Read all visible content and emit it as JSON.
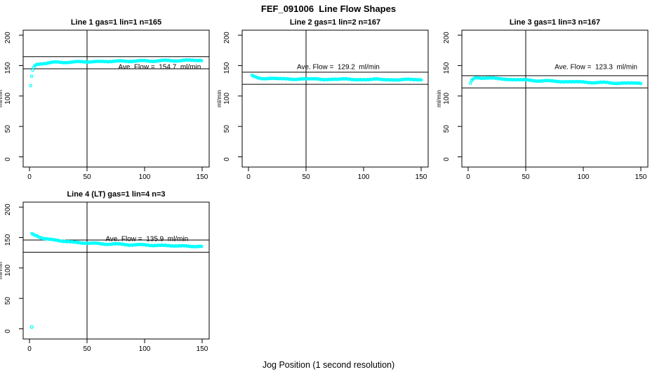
{
  "page": {
    "title": "FEF_091006  Line Flow Shapes",
    "xlabel": "Jog Position (1 second resolution)",
    "ylabel": "ml/min"
  },
  "colors": {
    "marker": "#00FFFF",
    "axis": "#000000",
    "background": "#FFFFFF",
    "text": "#000000"
  },
  "axes": {
    "x_ticks": [
      0,
      50,
      100,
      150
    ],
    "y_ticks": [
      0,
      50,
      100,
      150,
      200
    ],
    "x_range": [
      0,
      150
    ],
    "y_range": [
      0,
      200
    ],
    "vline_x": 50,
    "grid": false
  },
  "chart_data": [
    {
      "type": "scatter",
      "title": "Line 1 gas=1 lin=1 n=165",
      "line": 1,
      "gas": 1,
      "lin": 1,
      "n": 165,
      "ave_flow": 154.7,
      "annotation": "Ave. Flow =  154.7  ml/min",
      "hlines": [
        164.7,
        144.7
      ],
      "vline_x": 50,
      "keypoints": [
        [
          1,
          117
        ],
        [
          2,
          134
        ],
        [
          3,
          144.5
        ],
        [
          4,
          148.5
        ],
        [
          6,
          151.5
        ],
        [
          10,
          153.5
        ],
        [
          20,
          155
        ],
        [
          40,
          156
        ],
        [
          80,
          157.2
        ],
        [
          120,
          158
        ],
        [
          150,
          158.8
        ]
      ],
      "outliers": [],
      "x_start": 1,
      "x_step": 0.9,
      "x_end": 150,
      "ann_pos": {
        "x": 113,
        "y": 148
      },
      "grid_pos": {
        "row": 0,
        "col": 0
      }
    },
    {
      "type": "scatter",
      "title": "Line 2 gas=1 lin=2 n=167",
      "line": 2,
      "gas": 1,
      "lin": 2,
      "n": 167,
      "ave_flow": 129.2,
      "annotation": "Ave. Flow =  129.2  ml/min",
      "hlines": [
        139.2,
        119.2
      ],
      "vline_x": 50,
      "keypoints": [
        [
          3,
          134
        ],
        [
          5,
          132.3
        ],
        [
          8,
          130.3
        ],
        [
          12,
          129.2
        ],
        [
          20,
          128.4
        ],
        [
          40,
          128
        ],
        [
          70,
          127.6
        ],
        [
          100,
          127.2
        ],
        [
          150,
          126.7
        ]
      ],
      "outliers": [],
      "x_start": 3,
      "x_step": 0.886,
      "x_end": 150,
      "ann_pos": {
        "x": 78,
        "y": 148
      },
      "grid_pos": {
        "row": 0,
        "col": 1
      }
    },
    {
      "type": "scatter",
      "title": "Line 3 gas=1 lin=3 n=167",
      "line": 3,
      "gas": 1,
      "lin": 3,
      "n": 167,
      "ave_flow": 123.3,
      "annotation": "Ave. Flow =  123.3  ml/min",
      "hlines": [
        133.3,
        113.3
      ],
      "vline_x": 50,
      "keypoints": [
        [
          2,
          121
        ],
        [
          3,
          126
        ],
        [
          5,
          129
        ],
        [
          8,
          130.3
        ],
        [
          14,
          130
        ],
        [
          25,
          128.5
        ],
        [
          45,
          126.5
        ],
        [
          70,
          124.5
        ],
        [
          100,
          122.8
        ],
        [
          125,
          121.5
        ],
        [
          150,
          120.8
        ]
      ],
      "outliers": [],
      "x_start": 2,
      "x_step": 0.892,
      "x_end": 150,
      "ann_pos": {
        "x": 111,
        "y": 148
      },
      "grid_pos": {
        "row": 0,
        "col": 2
      }
    },
    {
      "type": "scatter",
      "title": "Line 4 (LT) gas=1 lin=4 n=3",
      "line": 4,
      "gas": 1,
      "lin": 4,
      "n": 3,
      "ave_flow": 135.9,
      "annotation": "Ave. Flow =  135.9  ml/min",
      "hlines": [
        145.9,
        125.9
      ],
      "vline_x": 50,
      "keypoints": [
        [
          2,
          156.5
        ],
        [
          4,
          154.5
        ],
        [
          7,
          152
        ],
        [
          12,
          149
        ],
        [
          18,
          146.8
        ],
        [
          25,
          145
        ],
        [
          32,
          143.6
        ],
        [
          40,
          142
        ],
        [
          50,
          140.8
        ],
        [
          62,
          139.8
        ],
        [
          75,
          139
        ],
        [
          90,
          138.2
        ],
        [
          110,
          137.2
        ],
        [
          130,
          136.2
        ],
        [
          150,
          135.3
        ]
      ],
      "outliers": [
        [
          2,
          3
        ]
      ],
      "x_start": 2,
      "x_step": 0.9,
      "x_end": 150,
      "ann_pos": {
        "x": 102,
        "y": 148
      },
      "grid_pos": {
        "row": 1,
        "col": 0
      }
    }
  ]
}
